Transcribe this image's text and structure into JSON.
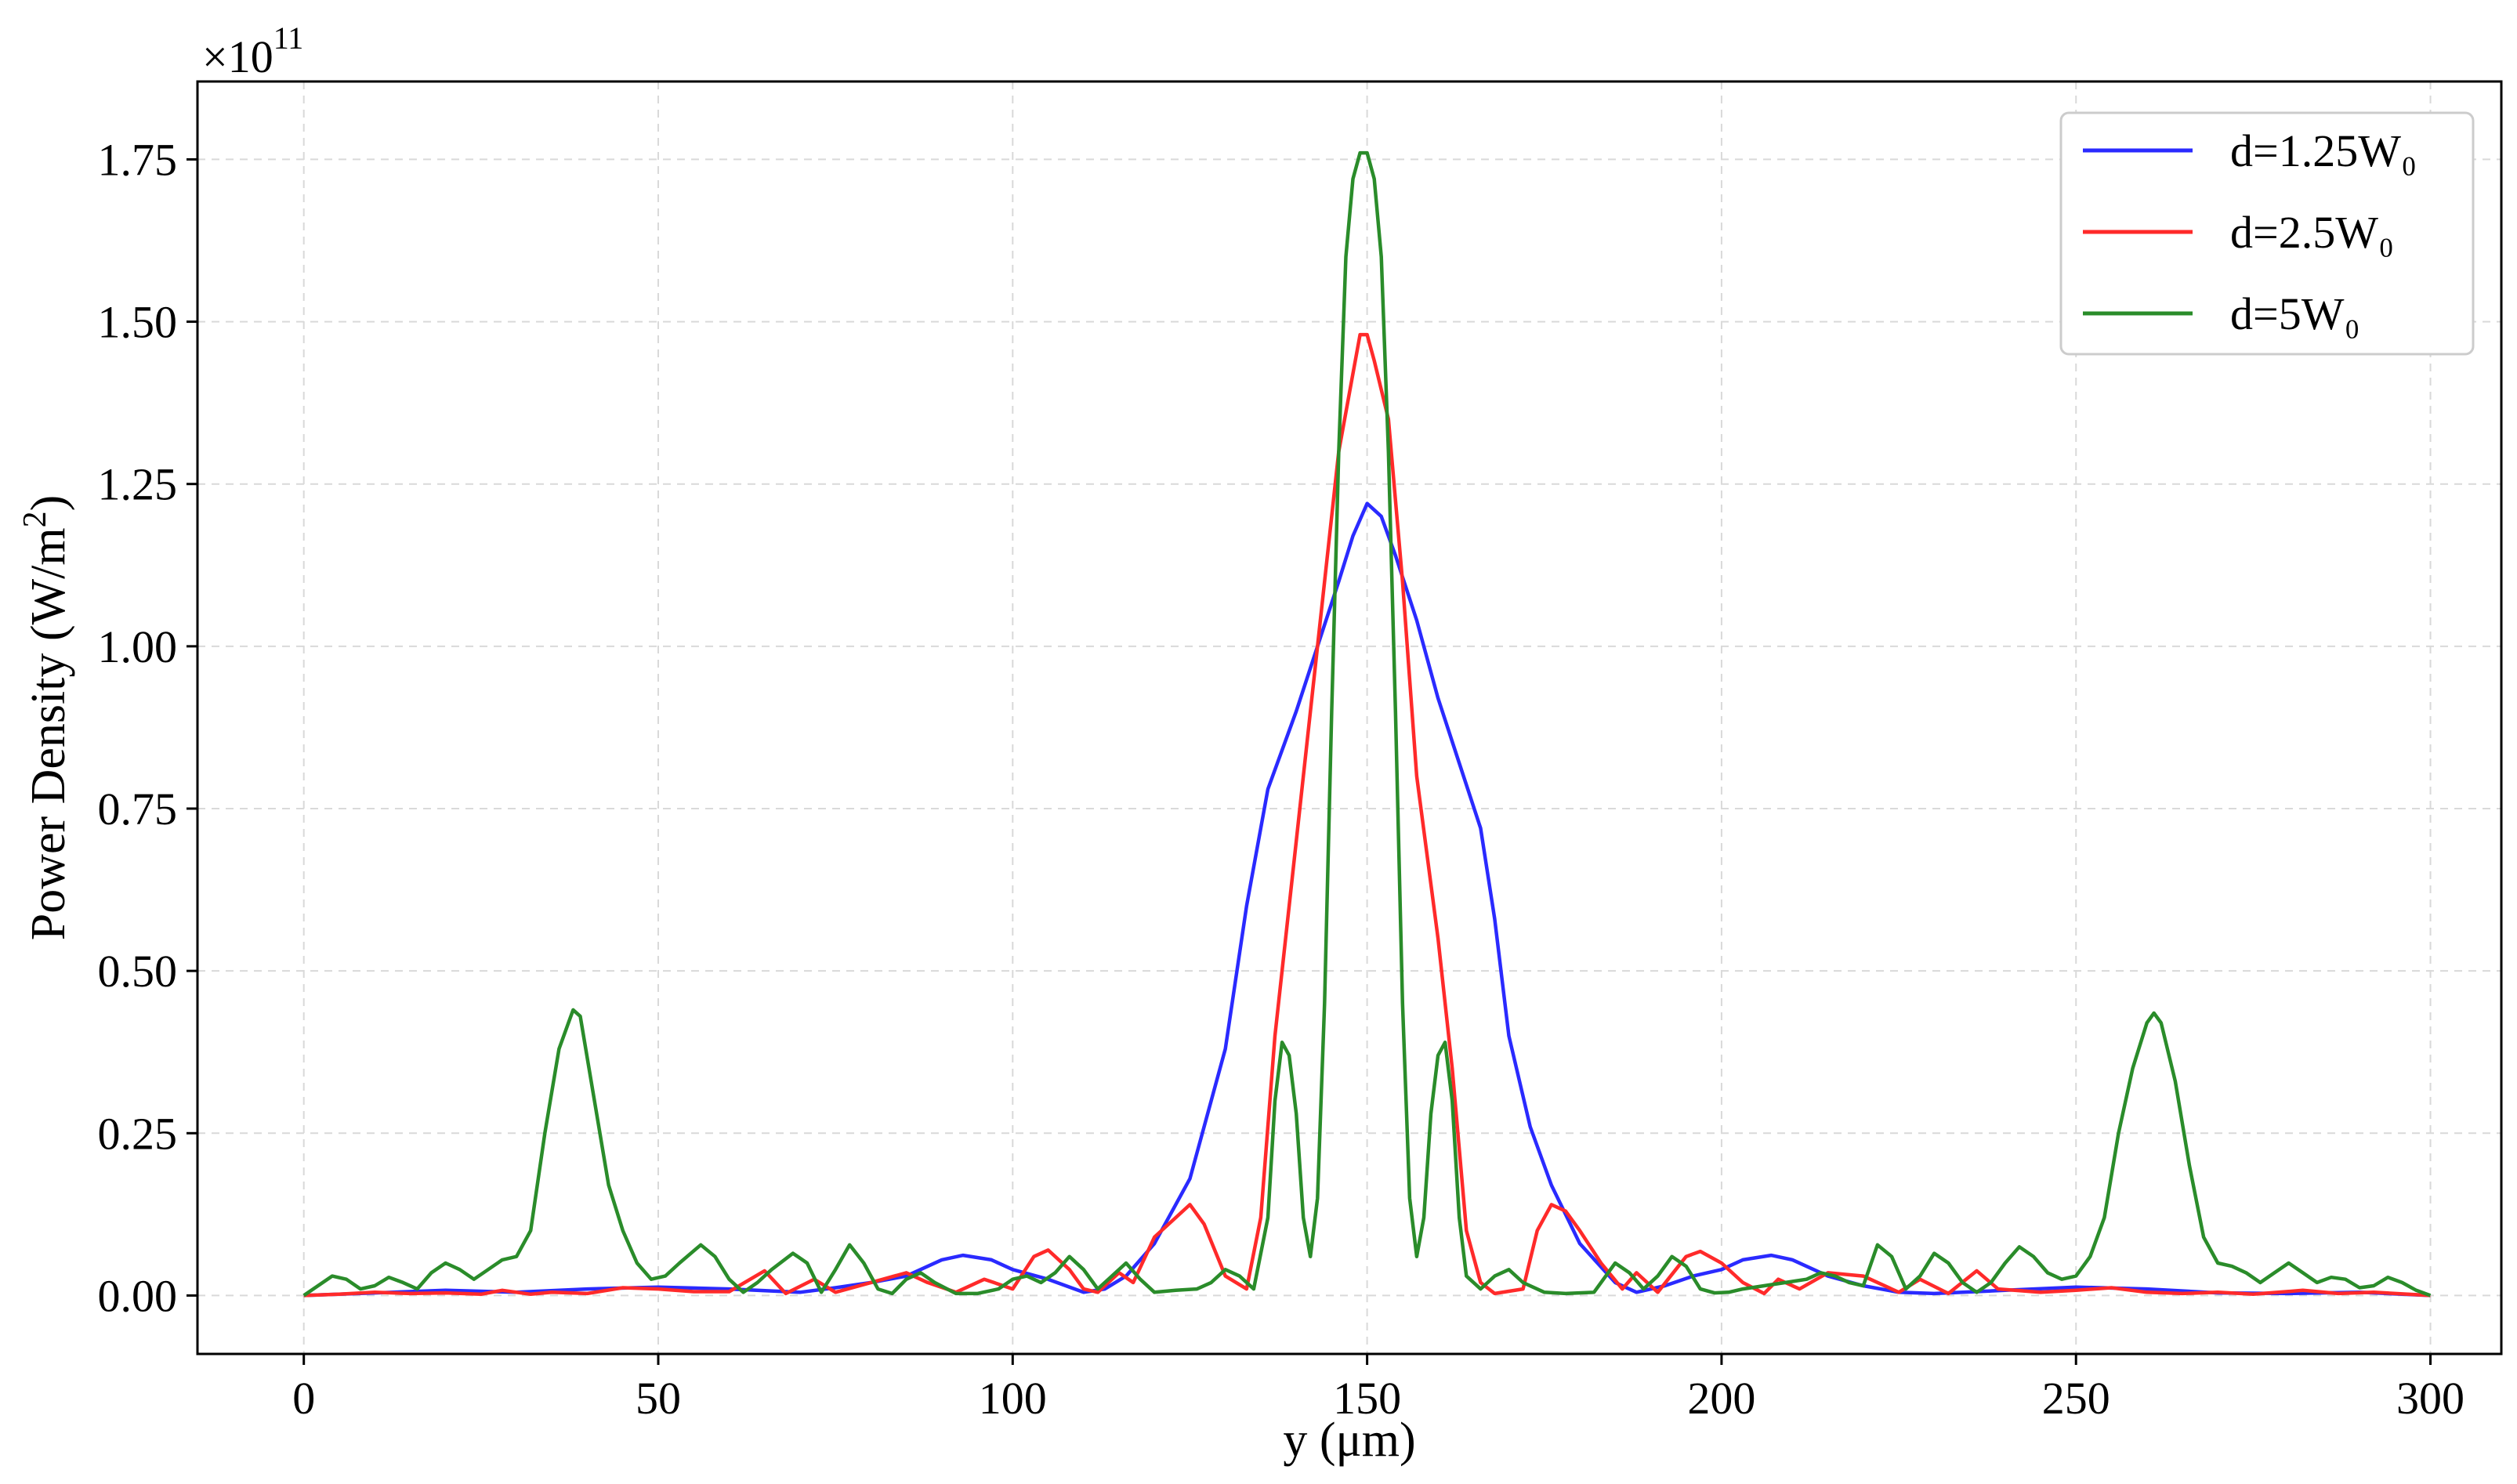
{
  "chart_data": {
    "type": "line",
    "title": "",
    "xlabel": "y (μm)",
    "ylabel": "Power Density (W/m²)",
    "ylabel_main": "Power Density (W/m",
    "ylabel_sup": "2",
    "ylabel_close": ")",
    "y_multiplier_base": "×10",
    "y_multiplier_exp": "11",
    "xlim": [
      -15,
      310
    ],
    "ylim": [
      -0.09,
      1.87
    ],
    "x_ticks": [
      0,
      50,
      100,
      150,
      200,
      250,
      300
    ],
    "x_tick_labels": [
      "0",
      "50",
      "100",
      "150",
      "200",
      "250",
      "300"
    ],
    "y_ticks": [
      0,
      0.25,
      0.5,
      0.75,
      1.0,
      1.25,
      1.5,
      1.75
    ],
    "y_tick_labels": [
      "0.00",
      "0.25",
      "0.50",
      "0.75",
      "1.00",
      "1.25",
      "1.50",
      "1.75"
    ],
    "grid": true,
    "legend_position": "top-right",
    "series": [
      {
        "name": "d=1.25W₀",
        "color": "#2a2aff",
        "points": [
          [
            0,
            0
          ],
          [
            10,
            0.004
          ],
          [
            20,
            0.008
          ],
          [
            30,
            0.005
          ],
          [
            40,
            0.01
          ],
          [
            50,
            0.013
          ],
          [
            60,
            0.01
          ],
          [
            70,
            0.005
          ],
          [
            75,
            0.012
          ],
          [
            80,
            0.02
          ],
          [
            85,
            0.03
          ],
          [
            90,
            0.055
          ],
          [
            93,
            0.062
          ],
          [
            97,
            0.055
          ],
          [
            100,
            0.04
          ],
          [
            105,
            0.025
          ],
          [
            110,
            0.005
          ],
          [
            113,
            0.01
          ],
          [
            116,
            0.03
          ],
          [
            120,
            0.08
          ],
          [
            125,
            0.18
          ],
          [
            130,
            0.38
          ],
          [
            133,
            0.6
          ],
          [
            136,
            0.78
          ],
          [
            140,
            0.9
          ],
          [
            143,
            1.0
          ],
          [
            146,
            1.1
          ],
          [
            148,
            1.17
          ],
          [
            150,
            1.22
          ],
          [
            152,
            1.2
          ],
          [
            154,
            1.14
          ],
          [
            157,
            1.04
          ],
          [
            160,
            0.92
          ],
          [
            163,
            0.82
          ],
          [
            166,
            0.72
          ],
          [
            168,
            0.58
          ],
          [
            170,
            0.4
          ],
          [
            173,
            0.26
          ],
          [
            176,
            0.17
          ],
          [
            180,
            0.08
          ],
          [
            185,
            0.02
          ],
          [
            188,
            0.005
          ],
          [
            192,
            0.015
          ],
          [
            196,
            0.03
          ],
          [
            200,
            0.04
          ],
          [
            203,
            0.055
          ],
          [
            207,
            0.062
          ],
          [
            210,
            0.055
          ],
          [
            215,
            0.03
          ],
          [
            220,
            0.015
          ],
          [
            225,
            0.005
          ],
          [
            230,
            0.003
          ],
          [
            240,
            0.008
          ],
          [
            250,
            0.013
          ],
          [
            260,
            0.01
          ],
          [
            270,
            0.004
          ],
          [
            280,
            0.003
          ],
          [
            290,
            0.005
          ],
          [
            300,
            0
          ]
        ]
      },
      {
        "name": "d=2.5W₀",
        "color": "#ff2a2a",
        "points": [
          [
            0,
            0
          ],
          [
            5,
            0.002
          ],
          [
            10,
            0.005
          ],
          [
            15,
            0.003
          ],
          [
            20,
            0.004
          ],
          [
            25,
            0.002
          ],
          [
            28,
            0.008
          ],
          [
            32,
            0.002
          ],
          [
            35,
            0.005
          ],
          [
            40,
            0.003
          ],
          [
            45,
            0.012
          ],
          [
            50,
            0.01
          ],
          [
            55,
            0.006
          ],
          [
            60,
            0.006
          ],
          [
            65,
            0.038
          ],
          [
            68,
            0.003
          ],
          [
            72,
            0.025
          ],
          [
            75,
            0.005
          ],
          [
            80,
            0.02
          ],
          [
            85,
            0.035
          ],
          [
            88,
            0.02
          ],
          [
            92,
            0.005
          ],
          [
            96,
            0.025
          ],
          [
            100,
            0.01
          ],
          [
            103,
            0.06
          ],
          [
            105,
            0.07
          ],
          [
            108,
            0.04
          ],
          [
            110,
            0.01
          ],
          [
            112,
            0.005
          ],
          [
            115,
            0.035
          ],
          [
            117,
            0.02
          ],
          [
            120,
            0.09
          ],
          [
            123,
            0.12
          ],
          [
            125,
            0.14
          ],
          [
            127,
            0.11
          ],
          [
            130,
            0.03
          ],
          [
            133,
            0.01
          ],
          [
            135,
            0.12
          ],
          [
            137,
            0.4
          ],
          [
            140,
            0.7
          ],
          [
            143,
            1.0
          ],
          [
            146,
            1.3
          ],
          [
            148,
            1.42
          ],
          [
            149,
            1.48
          ],
          [
            150,
            1.48
          ],
          [
            151,
            1.44
          ],
          [
            153,
            1.35
          ],
          [
            155,
            1.1
          ],
          [
            157,
            0.8
          ],
          [
            160,
            0.55
          ],
          [
            162,
            0.35
          ],
          [
            164,
            0.1
          ],
          [
            166,
            0.02
          ],
          [
            168,
            0.003
          ],
          [
            172,
            0.01
          ],
          [
            174,
            0.1
          ],
          [
            176,
            0.14
          ],
          [
            178,
            0.13
          ],
          [
            180,
            0.1
          ],
          [
            183,
            0.05
          ],
          [
            186,
            0.01
          ],
          [
            188,
            0.035
          ],
          [
            191,
            0.005
          ],
          [
            195,
            0.06
          ],
          [
            197,
            0.068
          ],
          [
            200,
            0.05
          ],
          [
            203,
            0.02
          ],
          [
            206,
            0.003
          ],
          [
            208,
            0.025
          ],
          [
            211,
            0.01
          ],
          [
            215,
            0.035
          ],
          [
            220,
            0.03
          ],
          [
            225,
            0.005
          ],
          [
            228,
            0.025
          ],
          [
            232,
            0.003
          ],
          [
            236,
            0.038
          ],
          [
            239,
            0.01
          ],
          [
            245,
            0.005
          ],
          [
            250,
            0.008
          ],
          [
            255,
            0.012
          ],
          [
            260,
            0.005
          ],
          [
            265,
            0.003
          ],
          [
            270,
            0.005
          ],
          [
            275,
            0.002
          ],
          [
            282,
            0.008
          ],
          [
            287,
            0.003
          ],
          [
            292,
            0.005
          ],
          [
            300,
            0
          ]
        ]
      },
      {
        "name": "d=5W₀",
        "color": "#2a8c2a",
        "points": [
          [
            0,
            0
          ],
          [
            2,
            0.015
          ],
          [
            4,
            0.03
          ],
          [
            6,
            0.025
          ],
          [
            8,
            0.01
          ],
          [
            10,
            0.015
          ],
          [
            12,
            0.028
          ],
          [
            14,
            0.02
          ],
          [
            16,
            0.01
          ],
          [
            18,
            0.035
          ],
          [
            20,
            0.05
          ],
          [
            22,
            0.04
          ],
          [
            24,
            0.025
          ],
          [
            26,
            0.04
          ],
          [
            28,
            0.055
          ],
          [
            30,
            0.06
          ],
          [
            32,
            0.1
          ],
          [
            34,
            0.25
          ],
          [
            36,
            0.38
          ],
          [
            38,
            0.44
          ],
          [
            39,
            0.43
          ],
          [
            41,
            0.3
          ],
          [
            43,
            0.17
          ],
          [
            45,
            0.1
          ],
          [
            47,
            0.05
          ],
          [
            49,
            0.025
          ],
          [
            51,
            0.03
          ],
          [
            53,
            0.05
          ],
          [
            56,
            0.078
          ],
          [
            58,
            0.06
          ],
          [
            60,
            0.025
          ],
          [
            62,
            0.005
          ],
          [
            64,
            0.02
          ],
          [
            66,
            0.04
          ],
          [
            69,
            0.065
          ],
          [
            71,
            0.05
          ],
          [
            73,
            0.005
          ],
          [
            75,
            0.04
          ],
          [
            77,
            0.078
          ],
          [
            79,
            0.05
          ],
          [
            81,
            0.01
          ],
          [
            83,
            0.003
          ],
          [
            85,
            0.025
          ],
          [
            87,
            0.035
          ],
          [
            89,
            0.02
          ],
          [
            92,
            0.003
          ],
          [
            95,
            0.003
          ],
          [
            98,
            0.01
          ],
          [
            100,
            0.025
          ],
          [
            102,
            0.03
          ],
          [
            104,
            0.02
          ],
          [
            106,
            0.035
          ],
          [
            108,
            0.06
          ],
          [
            110,
            0.04
          ],
          [
            112,
            0.01
          ],
          [
            114,
            0.03
          ],
          [
            116,
            0.05
          ],
          [
            118,
            0.025
          ],
          [
            120,
            0.005
          ],
          [
            123,
            0.008
          ],
          [
            126,
            0.01
          ],
          [
            128,
            0.02
          ],
          [
            130,
            0.04
          ],
          [
            132,
            0.03
          ],
          [
            134,
            0.01
          ],
          [
            136,
            0.12
          ],
          [
            137,
            0.3
          ],
          [
            138,
            0.39
          ],
          [
            139,
            0.37
          ],
          [
            140,
            0.28
          ],
          [
            141,
            0.12
          ],
          [
            142,
            0.06
          ],
          [
            143,
            0.15
          ],
          [
            144,
            0.45
          ],
          [
            145,
            0.9
          ],
          [
            146,
            1.3
          ],
          [
            147,
            1.6
          ],
          [
            148,
            1.72
          ],
          [
            149,
            1.76
          ],
          [
            150,
            1.76
          ],
          [
            151,
            1.72
          ],
          [
            152,
            1.6
          ],
          [
            153,
            1.3
          ],
          [
            154,
            0.9
          ],
          [
            155,
            0.45
          ],
          [
            156,
            0.15
          ],
          [
            157,
            0.06
          ],
          [
            158,
            0.12
          ],
          [
            159,
            0.28
          ],
          [
            160,
            0.37
          ],
          [
            161,
            0.39
          ],
          [
            162,
            0.3
          ],
          [
            163,
            0.12
          ],
          [
            164,
            0.03
          ],
          [
            166,
            0.01
          ],
          [
            168,
            0.03
          ],
          [
            170,
            0.04
          ],
          [
            172,
            0.02
          ],
          [
            175,
            0.005
          ],
          [
            178,
            0.003
          ],
          [
            182,
            0.005
          ],
          [
            185,
            0.05
          ],
          [
            187,
            0.035
          ],
          [
            189,
            0.01
          ],
          [
            191,
            0.03
          ],
          [
            193,
            0.06
          ],
          [
            195,
            0.045
          ],
          [
            197,
            0.01
          ],
          [
            199,
            0.004
          ],
          [
            201,
            0.005
          ],
          [
            203,
            0.01
          ],
          [
            206,
            0.015
          ],
          [
            209,
            0.02
          ],
          [
            212,
            0.025
          ],
          [
            214,
            0.035
          ],
          [
            216,
            0.03
          ],
          [
            218,
            0.02
          ],
          [
            220,
            0.015
          ],
          [
            222,
            0.078
          ],
          [
            224,
            0.06
          ],
          [
            226,
            0.01
          ],
          [
            228,
            0.03
          ],
          [
            230,
            0.065
          ],
          [
            232,
            0.05
          ],
          [
            234,
            0.02
          ],
          [
            236,
            0.005
          ],
          [
            238,
            0.02
          ],
          [
            240,
            0.05
          ],
          [
            242,
            0.075
          ],
          [
            244,
            0.06
          ],
          [
            246,
            0.035
          ],
          [
            248,
            0.025
          ],
          [
            250,
            0.03
          ],
          [
            252,
            0.06
          ],
          [
            254,
            0.12
          ],
          [
            256,
            0.25
          ],
          [
            258,
            0.35
          ],
          [
            260,
            0.42
          ],
          [
            261,
            0.435
          ],
          [
            262,
            0.42
          ],
          [
            264,
            0.33
          ],
          [
            266,
            0.2
          ],
          [
            268,
            0.09
          ],
          [
            270,
            0.05
          ],
          [
            272,
            0.045
          ],
          [
            274,
            0.035
          ],
          [
            276,
            0.02
          ],
          [
            278,
            0.035
          ],
          [
            280,
            0.05
          ],
          [
            282,
            0.035
          ],
          [
            284,
            0.02
          ],
          [
            286,
            0.028
          ],
          [
            288,
            0.025
          ],
          [
            290,
            0.012
          ],
          [
            292,
            0.015
          ],
          [
            294,
            0.028
          ],
          [
            296,
            0.02
          ],
          [
            298,
            0.008
          ],
          [
            300,
            0
          ]
        ]
      }
    ]
  }
}
